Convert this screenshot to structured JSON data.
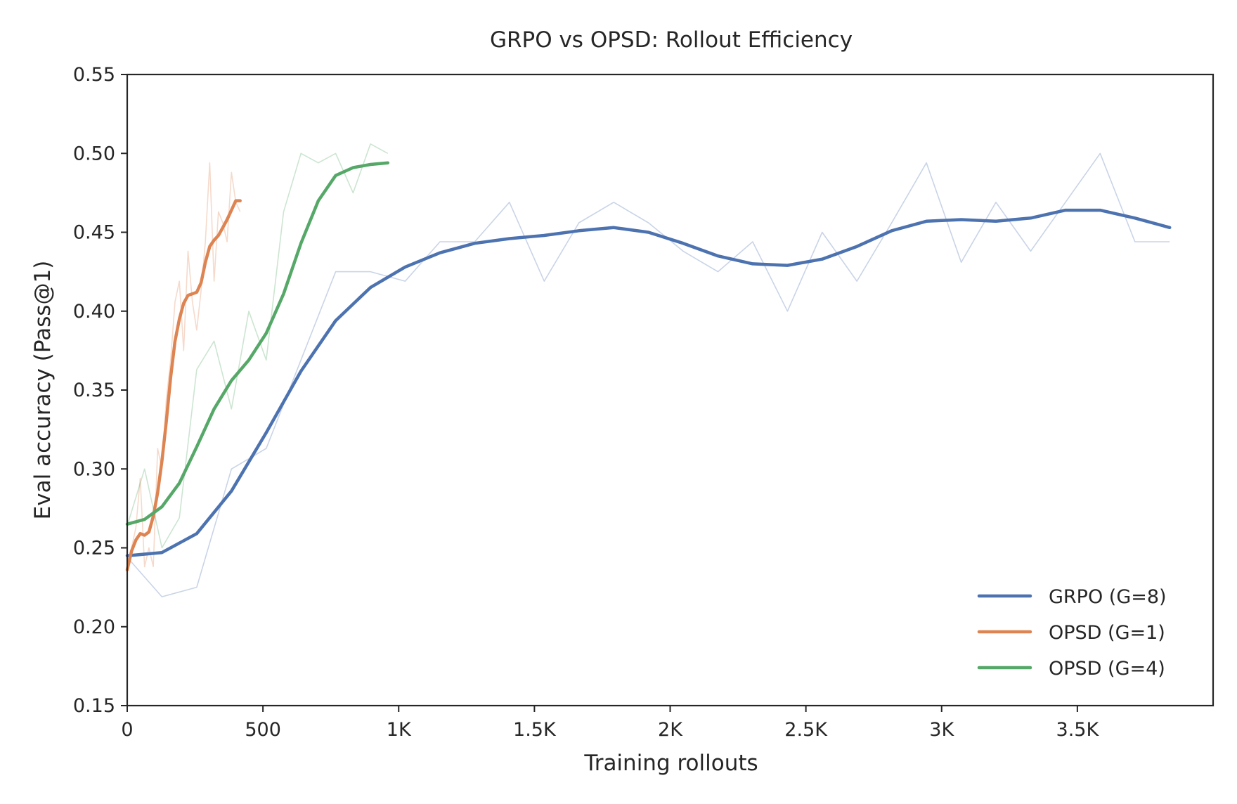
{
  "chart_data": {
    "type": "line",
    "title": "GRPO vs OPSD: Rollout Efficiency",
    "xlabel": "Training rollouts",
    "ylabel": "Eval accuracy (Pass@1)",
    "xlim": [
      0,
      4000
    ],
    "ylim": [
      0.15,
      0.55
    ],
    "x_ticks": [
      0,
      500,
      1000,
      1500,
      2000,
      2500,
      3000,
      3500
    ],
    "x_tick_labels": [
      "0",
      "500",
      "1K",
      "1.5K",
      "2K",
      "2.5K",
      "3K",
      "3.5K"
    ],
    "y_ticks": [
      0.15,
      0.2,
      0.25,
      0.3,
      0.35,
      0.4,
      0.45,
      0.5,
      0.55
    ],
    "y_tick_labels": [
      "0.15",
      "0.20",
      "0.25",
      "0.30",
      "0.35",
      "0.40",
      "0.45",
      "0.50",
      "0.55"
    ],
    "grid": false,
    "legend_position": "bottom-right",
    "series": [
      {
        "name": "GRPO (G=8)",
        "color": "#4c72b0",
        "raw_x": [
          0,
          128,
          256,
          384,
          512,
          640,
          768,
          896,
          1024,
          1152,
          1280,
          1408,
          1536,
          1664,
          1792,
          1920,
          2048,
          2176,
          2304,
          2432,
          2560,
          2688,
          2816,
          2944,
          3072,
          3200,
          3328,
          3456,
          3584,
          3712,
          3840
        ],
        "raw_y": [
          0.244,
          0.219,
          0.225,
          0.3,
          0.313,
          0.369,
          0.425,
          0.425,
          0.419,
          0.444,
          0.444,
          0.469,
          0.419,
          0.456,
          0.469,
          0.456,
          0.438,
          0.425,
          0.444,
          0.4,
          0.45,
          0.419,
          0.456,
          0.494,
          0.431,
          0.469,
          0.438,
          0.469,
          0.5,
          0.444,
          0.444
        ],
        "smooth_x": [
          0,
          128,
          256,
          384,
          512,
          640,
          768,
          896,
          1024,
          1152,
          1280,
          1408,
          1536,
          1664,
          1792,
          1920,
          2048,
          2176,
          2304,
          2432,
          2560,
          2688,
          2816,
          2944,
          3072,
          3200,
          3328,
          3456,
          3584,
          3712,
          3840
        ],
        "smooth_y": [
          0.245,
          0.247,
          0.259,
          0.286,
          0.323,
          0.362,
          0.394,
          0.415,
          0.428,
          0.437,
          0.443,
          0.446,
          0.448,
          0.451,
          0.453,
          0.45,
          0.443,
          0.435,
          0.43,
          0.429,
          0.433,
          0.441,
          0.451,
          0.457,
          0.458,
          0.457,
          0.459,
          0.464,
          0.464,
          0.459,
          0.453
        ]
      },
      {
        "name": "OPSD (G=1)",
        "color": "#dd8452",
        "raw_x": [
          0,
          16,
          32,
          48,
          64,
          80,
          96,
          112,
          128,
          144,
          160,
          176,
          192,
          208,
          224,
          240,
          256,
          272,
          288,
          304,
          320,
          336,
          352,
          368,
          384,
          400,
          416
        ],
        "raw_y": [
          0.238,
          0.25,
          0.263,
          0.294,
          0.238,
          0.25,
          0.238,
          0.313,
          0.3,
          0.344,
          0.369,
          0.406,
          0.419,
          0.375,
          0.438,
          0.406,
          0.388,
          0.413,
          0.444,
          0.494,
          0.419,
          0.463,
          0.456,
          0.444,
          0.488,
          0.469,
          0.463
        ],
        "smooth_x": [
          0,
          16,
          32,
          48,
          64,
          80,
          96,
          112,
          128,
          144,
          160,
          176,
          192,
          208,
          224,
          240,
          256,
          272,
          288,
          304,
          320,
          336,
          352,
          368,
          384,
          400,
          416
        ],
        "smooth_y": [
          0.236,
          0.248,
          0.255,
          0.259,
          0.258,
          0.26,
          0.27,
          0.285,
          0.305,
          0.33,
          0.358,
          0.381,
          0.395,
          0.405,
          0.41,
          0.411,
          0.412,
          0.418,
          0.431,
          0.441,
          0.445,
          0.448,
          0.453,
          0.458,
          0.464,
          0.47,
          0.47
        ]
      },
      {
        "name": "OPSD (G=4)",
        "color": "#55a868",
        "raw_x": [
          0,
          64,
          128,
          192,
          256,
          320,
          384,
          448,
          512,
          576,
          640,
          704,
          768,
          832,
          896,
          960
        ],
        "raw_y": [
          0.264,
          0.3,
          0.25,
          0.269,
          0.363,
          0.381,
          0.338,
          0.4,
          0.369,
          0.463,
          0.5,
          0.494,
          0.5,
          0.475,
          0.506,
          0.5
        ],
        "smooth_x": [
          0,
          64,
          128,
          192,
          256,
          320,
          384,
          448,
          512,
          576,
          640,
          704,
          768,
          832,
          896,
          960
        ],
        "smooth_y": [
          0.265,
          0.268,
          0.276,
          0.291,
          0.314,
          0.338,
          0.356,
          0.369,
          0.386,
          0.411,
          0.443,
          0.47,
          0.486,
          0.491,
          0.493,
          0.494
        ]
      }
    ]
  }
}
